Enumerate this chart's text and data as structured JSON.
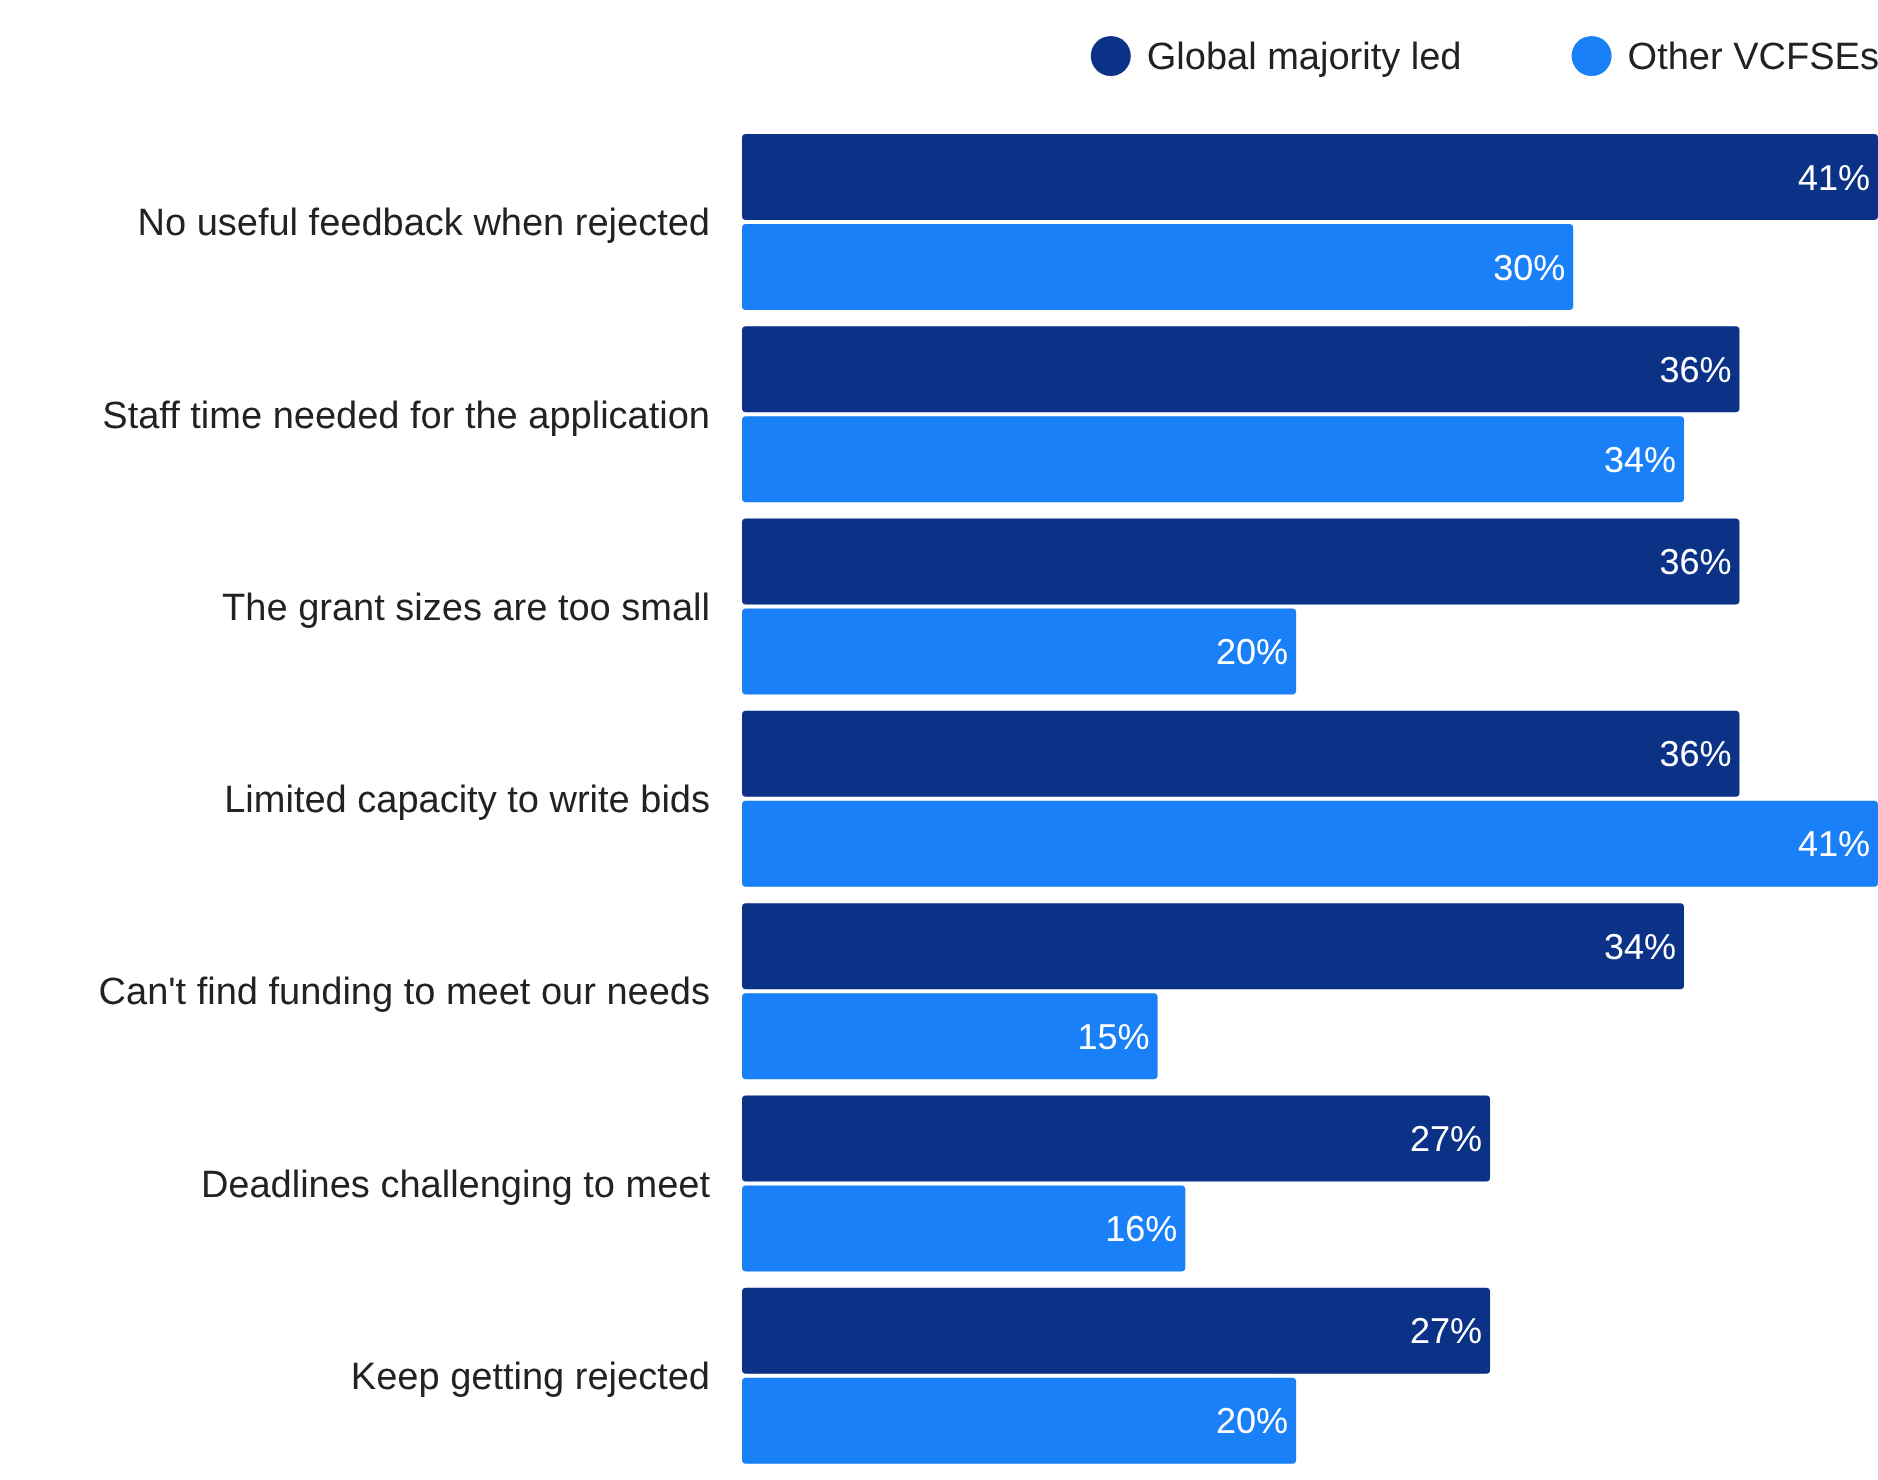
{
  "chart_data": {
    "type": "bar",
    "orientation": "horizontal",
    "legend": "top right",
    "grid": false,
    "categories": [
      "No useful feedback when rejected",
      "Staff time needed for the application",
      "The grant sizes are too small",
      "Limited capacity to write bids",
      "Can't find funding to meet our needs",
      "Deadlines challenging to meet",
      "Keep getting rejected"
    ],
    "series": [
      {
        "name": "Global majority led",
        "color": "#0b3287",
        "values": [
          41,
          36,
          36,
          36,
          34,
          27,
          27
        ],
        "value_labels": [
          "41%",
          "36%",
          "36%",
          "36%",
          "34%",
          "27%",
          "27%"
        ]
      },
      {
        "name": "Other VCFSEs",
        "color": "#1a80f7",
        "values": [
          30,
          34,
          20,
          41,
          15,
          16,
          20
        ],
        "value_labels": [
          "30%",
          "34%",
          "20%",
          "41%",
          "15%",
          "16%",
          "20%"
        ]
      }
    ]
  }
}
